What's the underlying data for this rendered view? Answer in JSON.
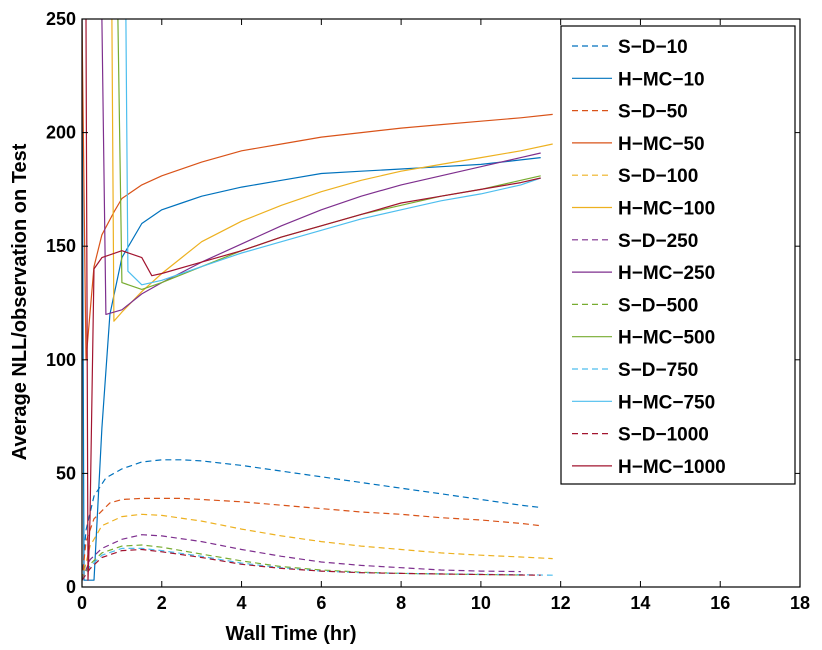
{
  "chart_data": {
    "type": "line",
    "title": "",
    "xlabel": "Wall Time (hr)",
    "ylabel": "Average NLL/observation on Test",
    "xlim": [
      0,
      18
    ],
    "ylim": [
      0,
      250
    ],
    "xticks": [
      0,
      2,
      4,
      6,
      8,
      10,
      12,
      14,
      16,
      18
    ],
    "yticks": [
      0,
      50,
      100,
      150,
      200,
      250
    ],
    "grid": false,
    "legend_position": "top-right",
    "series": [
      {
        "name": "S-D-10",
        "color": "#0072BD",
        "style": "dashed",
        "x": [
          0,
          0.1,
          0.3,
          0.6,
          1.0,
          1.5,
          2.0,
          2.5,
          3,
          4,
          5,
          6,
          7,
          8,
          9,
          10,
          11,
          11.5
        ],
        "y": [
          3,
          25,
          40,
          48,
          52,
          55,
          56,
          56,
          55.5,
          53.5,
          51,
          48.5,
          46,
          43.5,
          41,
          38.5,
          36,
          35
        ]
      },
      {
        "name": "H-MC-10",
        "color": "#0072BD",
        "style": "solid",
        "x": [
          0,
          0.05,
          0.3,
          0.5,
          0.7,
          1.0,
          1.5,
          2,
          2.5,
          3,
          4,
          5,
          6,
          7,
          8,
          9,
          10,
          11,
          11.5
        ],
        "y": [
          250,
          3,
          3,
          70,
          120,
          145,
          160,
          166,
          169,
          172,
          176,
          179,
          182,
          183,
          184,
          185,
          186,
          188,
          189
        ]
      },
      {
        "name": "S-D-50",
        "color": "#D95319",
        "style": "dashed",
        "x": [
          0,
          0.1,
          0.3,
          0.7,
          1.0,
          1.5,
          2.0,
          2.5,
          3,
          4,
          5,
          6,
          7,
          8,
          9,
          10,
          11,
          11.5
        ],
        "y": [
          3,
          20,
          30,
          37,
          38.5,
          39,
          39,
          39,
          38.5,
          37.5,
          36,
          34.5,
          33,
          32,
          30.5,
          29.5,
          28,
          27
        ]
      },
      {
        "name": "H-MC-50",
        "color": "#D95319",
        "style": "solid",
        "x": [
          0,
          0.1,
          0.3,
          0.5,
          0.8,
          1.0,
          1.5,
          2,
          3,
          4,
          5,
          6,
          7,
          8,
          9,
          10,
          11,
          11.8
        ],
        "y": [
          250,
          100,
          141,
          155,
          165,
          171,
          177,
          181,
          187,
          192,
          195,
          198,
          200,
          202,
          203.5,
          205,
          206.5,
          208
        ]
      },
      {
        "name": "S-D-100",
        "color": "#EDB120",
        "style": "dashed",
        "x": [
          0,
          0.2,
          0.5,
          1.0,
          1.5,
          2,
          3,
          4,
          5,
          6,
          7,
          8,
          9,
          10,
          11,
          11.8
        ],
        "y": [
          3,
          18,
          27,
          31,
          32,
          31.5,
          29,
          25.5,
          22.5,
          20,
          18,
          16.5,
          15,
          14,
          13.2,
          12.5
        ]
      },
      {
        "name": "H-MC-100",
        "color": "#EDB120",
        "style": "solid",
        "x": [
          0.75,
          0.8,
          1.0,
          1.5,
          2,
          2.5,
          3,
          4,
          5,
          6,
          7,
          8,
          9,
          10,
          11,
          11.8
        ],
        "y": [
          250,
          117,
          121,
          130,
          138,
          145,
          152,
          161,
          168,
          174,
          179,
          183,
          186,
          189,
          192,
          195
        ]
      },
      {
        "name": "S-D-250",
        "color": "#7E2F8E",
        "style": "dashed",
        "x": [
          0,
          0.2,
          0.5,
          1.0,
          1.5,
          2,
          3,
          4,
          5,
          6,
          7,
          8,
          9,
          10,
          11
        ],
        "y": [
          3,
          12,
          17,
          21,
          23,
          22.5,
          20,
          16.5,
          13.5,
          11,
          9.5,
          8.5,
          7.5,
          7,
          6.8
        ]
      },
      {
        "name": "H-MC-250",
        "color": "#7E2F8E",
        "style": "solid",
        "x": [
          0.5,
          0.6,
          1.0,
          1.5,
          2,
          3,
          4,
          5,
          6,
          7,
          8,
          9,
          10,
          11,
          11.5
        ],
        "y": [
          250,
          120,
          122,
          129,
          134,
          143,
          151,
          159,
          166,
          172,
          177,
          181,
          185,
          189,
          191
        ]
      },
      {
        "name": "S-D-500",
        "color": "#77AC30",
        "style": "dashed",
        "x": [
          0,
          0.2,
          0.5,
          1.0,
          1.5,
          2,
          3,
          4,
          5,
          6,
          7,
          8,
          9,
          10,
          11
        ],
        "y": [
          3,
          10,
          15,
          18,
          18.5,
          17.5,
          14.5,
          11.5,
          9,
          7.5,
          6.5,
          6,
          5.7,
          5.5,
          5.3
        ]
      },
      {
        "name": "H-MC-500",
        "color": "#77AC30",
        "style": "solid",
        "x": [
          0.9,
          1.0,
          1.5,
          2,
          3,
          4,
          5,
          6,
          7,
          8,
          9,
          10,
          11,
          11.5
        ],
        "y": [
          250,
          134,
          131,
          134,
          141,
          148,
          154,
          159,
          164,
          168,
          172,
          175,
          179,
          181
        ]
      },
      {
        "name": "S-D-750",
        "color": "#4DBEEE",
        "style": "dashed",
        "x": [
          0,
          0.2,
          0.5,
          1.0,
          1.5,
          2,
          3,
          4,
          5,
          6,
          7,
          8,
          9,
          10,
          11,
          11.8
        ],
        "y": [
          3,
          9,
          14,
          17,
          17,
          16,
          13.5,
          10.5,
          8.5,
          7,
          6.3,
          6,
          5.8,
          5.6,
          5.4,
          5.2
        ]
      },
      {
        "name": "H-MC-750",
        "color": "#4DBEEE",
        "style": "solid",
        "x": [
          1.1,
          1.15,
          1.5,
          2,
          3,
          4,
          5,
          6,
          7,
          8,
          9,
          10,
          11,
          11.5
        ],
        "y": [
          250,
          139,
          133,
          135,
          141,
          147,
          152,
          157,
          162,
          166,
          170,
          173,
          177,
          180
        ]
      },
      {
        "name": "S-D-1000",
        "color": "#A2142F",
        "style": "dashed",
        "x": [
          0,
          0.2,
          0.5,
          1.0,
          1.5,
          2,
          3,
          4,
          5,
          6,
          7,
          8,
          9,
          10,
          11,
          11.5
        ],
        "y": [
          3,
          8,
          13,
          16,
          16.5,
          15.5,
          13,
          10,
          8.2,
          7,
          6.3,
          6,
          5.7,
          5.5,
          5.3,
          5.2
        ]
      },
      {
        "name": "H-MC-1000",
        "color": "#A2142F",
        "style": "solid",
        "x": [
          0.1,
          0.15,
          0.2,
          0.3,
          0.5,
          1.0,
          1.5,
          1.75,
          2,
          3,
          4,
          5,
          6,
          7,
          8,
          9,
          10,
          11,
          11.5
        ],
        "y": [
          250,
          3,
          30,
          140,
          145,
          148,
          145,
          137,
          138,
          143,
          148,
          154,
          159,
          164,
          169,
          172,
          175,
          178,
          180
        ]
      }
    ]
  }
}
